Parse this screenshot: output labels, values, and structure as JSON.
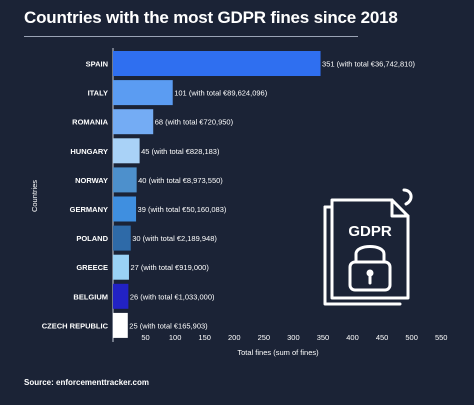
{
  "header": {
    "title": "Countries with the most GDPR fines since 2018"
  },
  "footer": {
    "source": "Source: enforcementtracker.com"
  },
  "icon": {
    "name": "gdpr-document-lock-icon",
    "label": "GDPR"
  },
  "chart_data": {
    "type": "bar",
    "orientation": "horizontal",
    "categories": [
      "SPAIN",
      "ITALY",
      "ROMANIA",
      "HUNGARY",
      "NORWAY",
      "GERMANY",
      "POLAND",
      "GREECE",
      "BELGIUM",
      "CZECH REPUBLIC"
    ],
    "values": [
      351,
      101,
      68,
      45,
      40,
      39,
      30,
      27,
      26,
      25
    ],
    "data_labels": [
      "351 (with total €36,742,810)",
      "101 (with total €89,624,096)",
      "68 (with total €720,950)",
      "45 (with total €828,183)",
      "40 (with total €8,973,550)",
      "39 (with total €50,160,083)",
      "30 (with total €2,189,948)",
      "27 (with total €919,000)",
      "26 (with total €1,033,000)",
      "25 (with total €165,903)"
    ],
    "colors": [
      "#2f6ff0",
      "#5b9cf2",
      "#74acf4",
      "#a9d2f7",
      "#4d90cc",
      "#3f8fe0",
      "#2e6aa8",
      "#9ad2f5",
      "#2222c4",
      "#ffffff"
    ],
    "xlabel": "Total fines (sum of fines)",
    "ylabel": "Countries",
    "xlim": [
      0,
      550
    ],
    "xticks": [
      50,
      100,
      150,
      200,
      250,
      300,
      350,
      400,
      450,
      500,
      550
    ],
    "grid": false,
    "legend": "none"
  }
}
